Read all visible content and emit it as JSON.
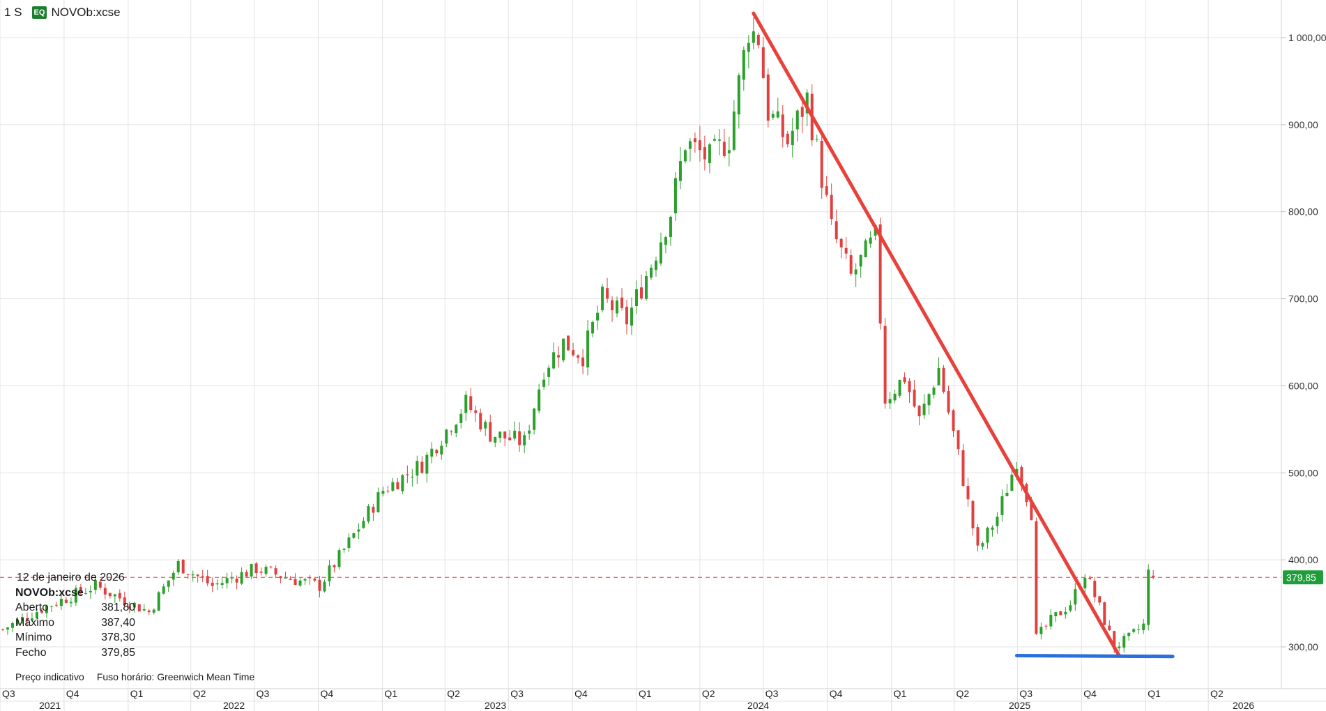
{
  "header": {
    "interval": "1 S",
    "badge": "EQ",
    "symbol": "NOVOb:xcse"
  },
  "tooltip": {
    "date": "12 de janeiro de 2026",
    "symbol": "NOVOb:xcse",
    "rows": [
      {
        "label": "Aberto",
        "value": "381,80"
      },
      {
        "label": "Máximo",
        "value": "387,40"
      },
      {
        "label": "Mínimo",
        "value": "378,30"
      },
      {
        "label": "Fecho",
        "value": "379,85"
      }
    ]
  },
  "footer": {
    "price_note": "Preço indicativo",
    "timezone": "Fuso horário: Greenwich Mean Time"
  },
  "colors": {
    "up": "#2ca02c",
    "down": "#e04040",
    "trend_line": "#e8413c",
    "support_line": "#2a6fdb",
    "last_price_bg": "#1f9d3a",
    "price_line": "#e8413c",
    "grid": "#e3e3e3"
  },
  "chart_data": {
    "type": "candlestick",
    "y_range": [
      245,
      1055
    ],
    "y_ticks": [
      "1 000,00",
      "900,00",
      "800,00",
      "700,00",
      "600,00",
      "500,00",
      "400,00",
      "300,00"
    ],
    "last_price_label": "379,85",
    "last_price": 379.85,
    "x_range": [
      "2021-07-01",
      "2026-07-15"
    ],
    "quarter_ticks": [
      {
        "date": "2021-07-01",
        "label": "Q3"
      },
      {
        "date": "2021-10-01",
        "label": "Q4"
      },
      {
        "date": "2022-01-01",
        "label": "Q1"
      },
      {
        "date": "2022-04-01",
        "label": "Q2"
      },
      {
        "date": "2022-07-01",
        "label": "Q3"
      },
      {
        "date": "2022-10-01",
        "label": "Q4"
      },
      {
        "date": "2023-01-01",
        "label": "Q1"
      },
      {
        "date": "2023-04-01",
        "label": "Q2"
      },
      {
        "date": "2023-07-01",
        "label": "Q3"
      },
      {
        "date": "2023-10-01",
        "label": "Q4"
      },
      {
        "date": "2024-01-01",
        "label": "Q1"
      },
      {
        "date": "2024-04-01",
        "label": "Q2"
      },
      {
        "date": "2024-07-01",
        "label": "Q3"
      },
      {
        "date": "2024-10-01",
        "label": "Q4"
      },
      {
        "date": "2025-01-01",
        "label": "Q1"
      },
      {
        "date": "2025-04-01",
        "label": "Q2"
      },
      {
        "date": "2025-07-01",
        "label": "Q3"
      },
      {
        "date": "2025-10-01",
        "label": "Q4"
      },
      {
        "date": "2026-01-01",
        "label": "Q1"
      },
      {
        "date": "2026-04-01",
        "label": "Q2"
      }
    ],
    "year_ticks": [
      {
        "date": "2021-01-01",
        "label": "2021"
      },
      {
        "date": "2022-01-01",
        "label": "2022"
      },
      {
        "date": "2023-01-01",
        "label": "2023"
      },
      {
        "date": "2024-01-01",
        "label": "2024"
      },
      {
        "date": "2025-01-01",
        "label": "2025"
      },
      {
        "date": "2026-01-01",
        "label": "2026"
      }
    ],
    "close_path": [
      {
        "date": "2021-07-05",
        "close": 320
      },
      {
        "date": "2021-09-01",
        "close": 345
      },
      {
        "date": "2021-11-15",
        "close": 370
      },
      {
        "date": "2022-01-31",
        "close": 340
      },
      {
        "date": "2022-03-14",
        "close": 395
      },
      {
        "date": "2022-05-02",
        "close": 370
      },
      {
        "date": "2022-07-04",
        "close": 390
      },
      {
        "date": "2022-08-15",
        "close": 380
      },
      {
        "date": "2022-10-03",
        "close": 370
      },
      {
        "date": "2022-11-14",
        "close": 420
      },
      {
        "date": "2023-01-02",
        "close": 480
      },
      {
        "date": "2023-02-27",
        "close": 510
      },
      {
        "date": "2023-05-01",
        "close": 580
      },
      {
        "date": "2023-06-05",
        "close": 545
      },
      {
        "date": "2023-07-24",
        "close": 535
      },
      {
        "date": "2023-08-21",
        "close": 620
      },
      {
        "date": "2023-09-18",
        "close": 650
      },
      {
        "date": "2023-10-16",
        "close": 635
      },
      {
        "date": "2023-11-13",
        "close": 700
      },
      {
        "date": "2023-12-18",
        "close": 675
      },
      {
        "date": "2024-01-22",
        "close": 740
      },
      {
        "date": "2024-02-19",
        "close": 800
      },
      {
        "date": "2024-03-11",
        "close": 880
      },
      {
        "date": "2024-04-15",
        "close": 860
      },
      {
        "date": "2024-05-13",
        "close": 885
      },
      {
        "date": "2024-06-10",
        "close": 1010
      },
      {
        "date": "2024-06-24",
        "close": 1000
      },
      {
        "date": "2024-07-08",
        "close": 915
      },
      {
        "date": "2024-08-05",
        "close": 880
      },
      {
        "date": "2024-09-02",
        "close": 930
      },
      {
        "date": "2024-10-07",
        "close": 780
      },
      {
        "date": "2024-11-04",
        "close": 725
      },
      {
        "date": "2024-12-09",
        "close": 770
      },
      {
        "date": "2024-12-23",
        "close": 585
      },
      {
        "date": "2025-01-20",
        "close": 610
      },
      {
        "date": "2025-02-10",
        "close": 560
      },
      {
        "date": "2025-03-10",
        "close": 620
      },
      {
        "date": "2025-04-07",
        "close": 520
      },
      {
        "date": "2025-05-05",
        "close": 410
      },
      {
        "date": "2025-06-02",
        "close": 450
      },
      {
        "date": "2025-06-30",
        "close": 515
      },
      {
        "date": "2025-07-21",
        "close": 455
      },
      {
        "date": "2025-07-28",
        "close": 310
      },
      {
        "date": "2025-08-18",
        "close": 330
      },
      {
        "date": "2025-09-15",
        "close": 350
      },
      {
        "date": "2025-10-06",
        "close": 385
      },
      {
        "date": "2025-10-27",
        "close": 345
      },
      {
        "date": "2025-11-17",
        "close": 300
      },
      {
        "date": "2025-12-08",
        "close": 310
      },
      {
        "date": "2025-12-29",
        "close": 325
      },
      {
        "date": "2026-01-05",
        "close": 385
      },
      {
        "date": "2026-01-12",
        "close": 379.85
      }
    ],
    "annotations": [
      {
        "type": "trend_line",
        "from": {
          "date": "2024-06-17",
          "price": 1028
        },
        "to": {
          "date": "2025-11-24",
          "price": 290
        }
      },
      {
        "type": "support_line",
        "from": {
          "date": "2025-06-30",
          "price": 290
        },
        "to": {
          "date": "2026-02-09",
          "price": 289
        }
      }
    ]
  }
}
